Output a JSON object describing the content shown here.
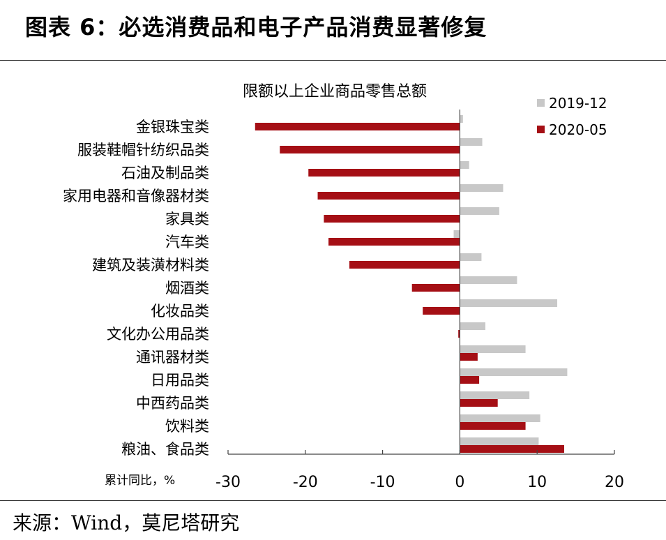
{
  "figure": {
    "title": "图表 6：必选消费品和电子产品消费显著修复",
    "source": "来源：Wind，莫尼塔研究"
  },
  "colors": {
    "series_2019": "#c8c8c8",
    "series_2020": "#a50f15",
    "axis": "#444444"
  },
  "chart_data": {
    "type": "bar",
    "orientation": "horizontal",
    "title": "限额以上企业商品零售总额",
    "xlabel": "累计同比，%",
    "xlim": [
      -30,
      20
    ],
    "xticks": [
      "-30",
      "-20",
      "-10",
      "0",
      "10",
      "20"
    ],
    "legend_position": "top-right",
    "categories": [
      "金银珠宝类",
      "服装鞋帽针纺织品类",
      "石油及制品类",
      "家用电器和音像器材类",
      "家具类",
      "汽车类",
      "建筑及装潢材料类",
      "烟酒类",
      "化妆品类",
      "文化办公用品类",
      "通讯器材类",
      "日用品类",
      "中西药品类",
      "饮料类",
      "粮油、食品类"
    ],
    "series": [
      {
        "name": "2019-12",
        "values": [
          0.4,
          2.9,
          1.2,
          5.6,
          5.1,
          -0.8,
          2.8,
          7.4,
          12.6,
          3.3,
          8.5,
          13.9,
          9.0,
          10.4,
          10.2
        ]
      },
      {
        "name": "2020-05",
        "values": [
          -26.5,
          -23.3,
          -19.6,
          -18.4,
          -17.6,
          -17.0,
          -14.3,
          -6.2,
          -4.8,
          -0.2,
          2.3,
          2.5,
          4.9,
          8.5,
          13.5
        ]
      }
    ]
  }
}
